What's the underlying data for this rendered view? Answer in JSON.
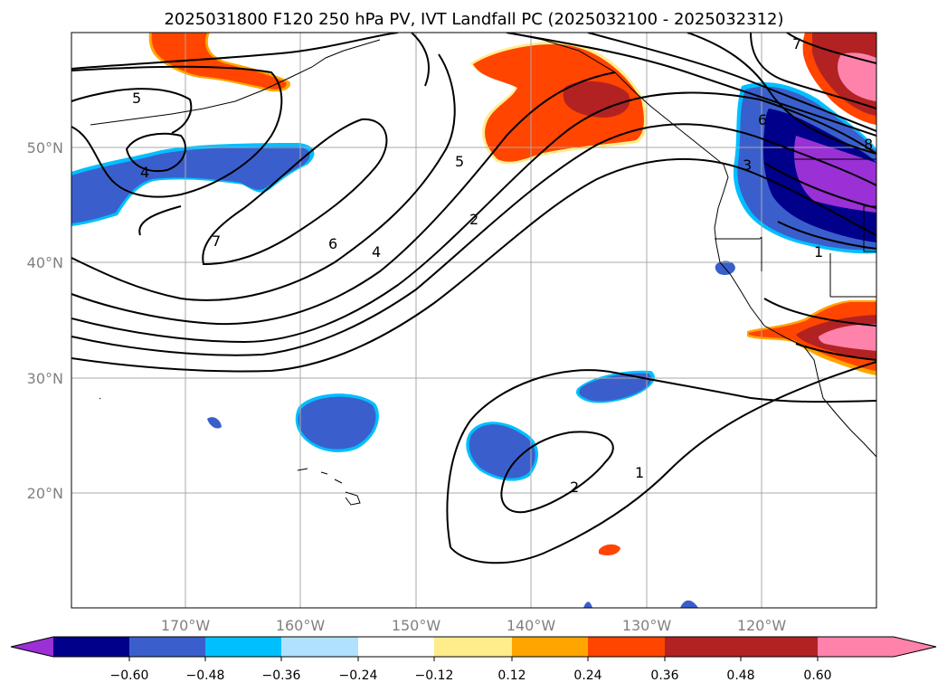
{
  "title": "2025031800 F120 250 hPa PV, IVT Landfall PC (2025032100 - 2025032312)",
  "map": {
    "lat_labels": [
      "50°N",
      "40°N",
      "30°N",
      "20°N"
    ],
    "lon_labels": [
      "170°W",
      "160°W",
      "150°W",
      "140°W",
      "130°W",
      "120°W"
    ],
    "grid": true
  },
  "contour_labels": [
    {
      "name": "contour-label-5-west",
      "text": "5"
    },
    {
      "name": "contour-label-4-west",
      "text": "4"
    },
    {
      "name": "contour-label-7",
      "text": "7"
    },
    {
      "name": "contour-label-6",
      "text": "6"
    },
    {
      "name": "contour-label-4",
      "text": "4"
    },
    {
      "name": "contour-label-5",
      "text": "5"
    },
    {
      "name": "contour-label-2",
      "text": "2"
    },
    {
      "name": "contour-label-6-east",
      "text": "6"
    },
    {
      "name": "contour-label-3-east",
      "text": "3"
    },
    {
      "name": "contour-label-8-east",
      "text": "8"
    },
    {
      "name": "contour-label-1-east",
      "text": "1"
    },
    {
      "name": "contour-label-7-ne",
      "text": "7"
    },
    {
      "name": "contour-label-2-south",
      "text": "2"
    },
    {
      "name": "contour-label-1-south",
      "text": "1"
    }
  ],
  "colorbar": {
    "colors": [
      "#9b30d6",
      "#00008b",
      "#3a5fcd",
      "#00bfff",
      "#b0e2ff",
      "#ffffff",
      "#ffec8b",
      "#ffa500",
      "#ff4500",
      "#b22222",
      "#ff82ab"
    ],
    "labels": [
      "−0.60",
      "−0.48",
      "−0.36",
      "−0.24",
      "−0.12",
      "0.12",
      "0.24",
      "0.36",
      "0.48",
      "0.60"
    ]
  }
}
